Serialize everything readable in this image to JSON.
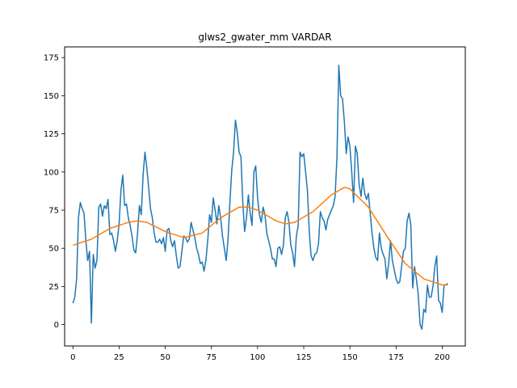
{
  "chart_data": {
    "type": "line",
    "title": "glws2_gwater_mm VARDAR",
    "xlabel": "",
    "ylabel": "",
    "xlim": [
      -4.5,
      212.5
    ],
    "ylim": [
      -14,
      182
    ],
    "xticks": [
      0,
      25,
      50,
      75,
      100,
      125,
      150,
      175,
      200
    ],
    "yticks": [
      0,
      25,
      50,
      75,
      100,
      125,
      150,
      175
    ],
    "grid": false,
    "legend": "none",
    "series": [
      {
        "color": "#1f77b4",
        "x": [
          0,
          1,
          2,
          3,
          4,
          5,
          6,
          7,
          8,
          9,
          10,
          11,
          12,
          13,
          14,
          15,
          16,
          17,
          18,
          19,
          20,
          21,
          22,
          23,
          24,
          25,
          26,
          27,
          28,
          29,
          30,
          31,
          32,
          33,
          34,
          35,
          36,
          37,
          38,
          39,
          40,
          41,
          42,
          43,
          44,
          45,
          46,
          47,
          48,
          49,
          50,
          51,
          52,
          53,
          54,
          55,
          56,
          57,
          58,
          59,
          60,
          61,
          62,
          63,
          64,
          65,
          66,
          67,
          68,
          69,
          70,
          71,
          72,
          73,
          74,
          75,
          76,
          77,
          78,
          79,
          80,
          81,
          82,
          83,
          84,
          85,
          86,
          87,
          88,
          89,
          90,
          91,
          92,
          93,
          94,
          95,
          96,
          97,
          98,
          99,
          100,
          101,
          102,
          103,
          104,
          105,
          106,
          107,
          108,
          109,
          110,
          111,
          112,
          113,
          114,
          115,
          116,
          117,
          118,
          119,
          120,
          121,
          122,
          123,
          124,
          125,
          126,
          127,
          128,
          129,
          130,
          131,
          132,
          133,
          134,
          135,
          136,
          137,
          138,
          139,
          140,
          141,
          142,
          143,
          144,
          145,
          146,
          147,
          148,
          149,
          150,
          151,
          152,
          153,
          154,
          155,
          156,
          157,
          158,
          159,
          160,
          161,
          162,
          163,
          164,
          165,
          166,
          167,
          168,
          169,
          170,
          171,
          172,
          173,
          174,
          175,
          176,
          177,
          178,
          179,
          180,
          181,
          182,
          183,
          184,
          185,
          186,
          187,
          188,
          189,
          190,
          191,
          192,
          193,
          194,
          195,
          196,
          197,
          198,
          199,
          200,
          201,
          202,
          203
        ],
        "y": [
          14,
          18,
          30,
          70,
          80,
          76,
          73,
          55,
          42,
          48,
          1,
          46,
          37,
          42,
          77,
          79,
          71,
          78,
          76,
          82,
          59,
          60,
          55,
          48,
          55,
          66,
          88,
          98,
          78,
          79,
          70,
          65,
          58,
          49,
          47,
          60,
          78,
          72,
          98,
          113,
          103,
          90,
          76,
          70,
          60,
          54,
          54,
          56,
          53,
          57,
          48,
          62,
          63,
          55,
          51,
          55,
          45,
          37,
          38,
          48,
          58,
          57,
          54,
          56,
          67,
          62,
          57,
          50,
          46,
          40,
          41,
          35,
          42,
          55,
          72,
          67,
          83,
          75,
          66,
          78,
          70,
          58,
          50,
          42,
          56,
          80,
          101,
          113,
          134,
          126,
          113,
          110,
          80,
          61,
          70,
          85,
          73,
          65,
          100,
          104,
          83,
          72,
          67,
          77,
          72,
          60,
          55,
          50,
          43,
          43,
          38,
          50,
          51,
          46,
          52,
          70,
          74,
          67,
          52,
          47,
          38,
          58,
          65,
          113,
          110,
          112,
          100,
          88,
          61,
          45,
          42,
          46,
          47,
          53,
          74,
          70,
          68,
          62,
          69,
          72,
          75,
          78,
          84,
          110,
          170,
          150,
          148,
          133,
          112,
          123,
          117,
          100,
          80,
          117,
          112,
          92,
          84,
          96,
          86,
          82,
          86,
          73,
          60,
          50,
          44,
          42,
          60,
          50,
          46,
          43,
          30,
          40,
          55,
          42,
          36,
          30,
          27,
          28,
          38,
          48,
          50,
          68,
          73,
          65,
          24,
          38,
          30,
          20,
          0,
          -3,
          10,
          8,
          26,
          18,
          18,
          25,
          38,
          45,
          16,
          14,
          8,
          26,
          26,
          27
        ]
      },
      {
        "color": "#ff7f0e",
        "x": [
          0,
          10,
          20,
          30,
          35,
          40,
          50,
          60,
          70,
          80,
          90,
          95,
          100,
          110,
          115,
          120,
          130,
          140,
          147,
          150,
          160,
          170,
          180,
          190,
          200,
          203
        ],
        "y": [
          52,
          56,
          63,
          67,
          68,
          67,
          61,
          57,
          60,
          70,
          77,
          77,
          75,
          68,
          66,
          67,
          74,
          85,
          90,
          89,
          77,
          58,
          40,
          30,
          26,
          26
        ]
      }
    ]
  }
}
